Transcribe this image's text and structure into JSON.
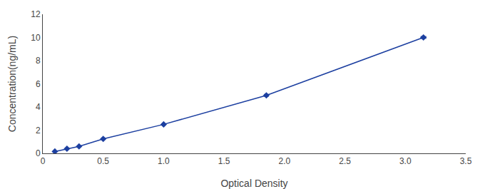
{
  "chart_data": {
    "type": "line",
    "x": [
      0.1,
      0.2,
      0.3,
      0.5,
      1.0,
      1.85,
      3.15
    ],
    "values": [
      0.16,
      0.4,
      0.6,
      1.25,
      2.5,
      5.0,
      10.0
    ],
    "xerr": [
      0.008,
      0.008,
      0.008,
      0.01,
      0.012,
      0.015,
      0.02
    ],
    "yerr": [
      0.04,
      0.04,
      0.04,
      0.06,
      0.07,
      0.1,
      0.1
    ],
    "color": "#1c3fa0",
    "marker": "diamond",
    "line_style": "solid",
    "xlabel": "Optical Density",
    "ylabel": "Concentration(ng/mL)",
    "xlim": [
      0,
      3.5
    ],
    "ylim": [
      0,
      12
    ],
    "xticks": [
      0,
      0.5,
      {
        "value": 1.0,
        "label": "1.0"
      },
      1.5,
      {
        "value": 2.0,
        "label": "2.0"
      },
      2.5,
      {
        "value": 3.0,
        "label": "3.0"
      },
      3.5
    ],
    "yticks": [
      0,
      2,
      4,
      6,
      8,
      10,
      12
    ],
    "grid": false
  }
}
